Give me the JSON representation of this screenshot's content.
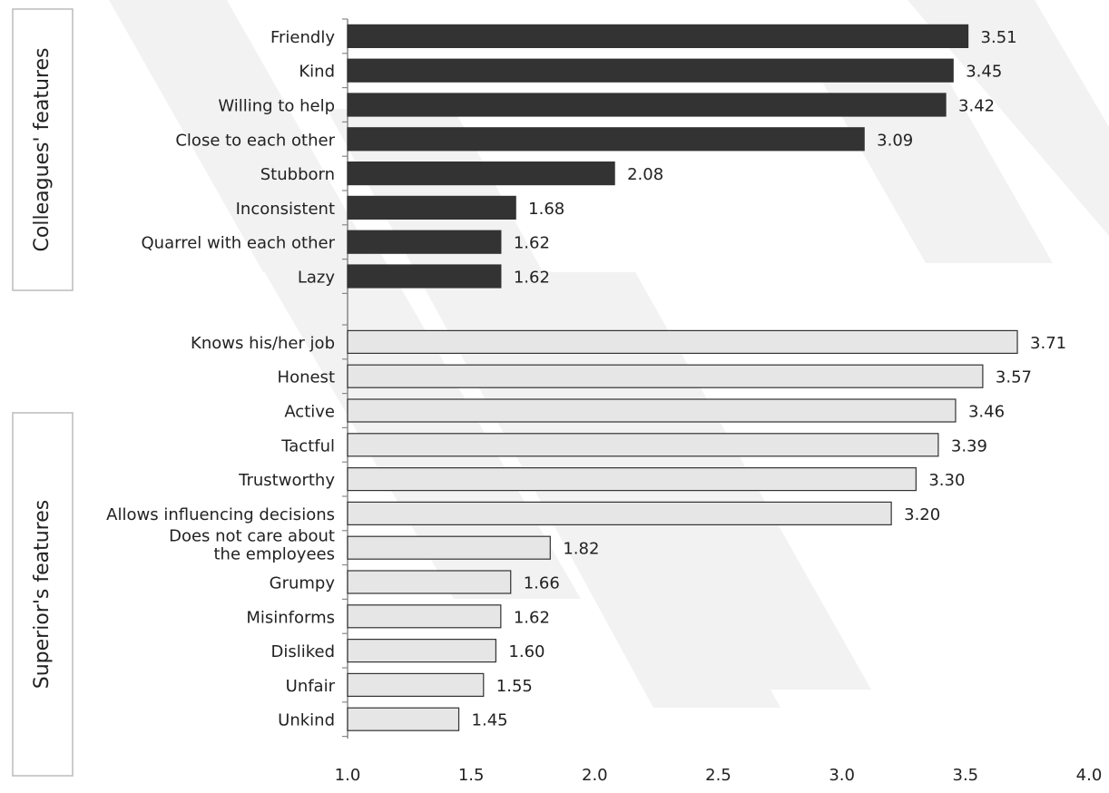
{
  "chart_data": {
    "type": "bar",
    "orientation": "horizontal",
    "title": "",
    "xlabel": "",
    "ylabel": "",
    "xlim": [
      1.0,
      4.0
    ],
    "xticks": [
      "1.0",
      "1.5",
      "2.0",
      "2.5",
      "3.0",
      "3.5",
      "4.0"
    ],
    "grid": false,
    "groups": [
      {
        "name": "Colleagues' features",
        "fill": "#333333",
        "categories": [
          {
            "label": [
              "Friendly"
            ],
            "value": 3.51,
            "value_label": "3.51"
          },
          {
            "label": [
              "Kind"
            ],
            "value": 3.45,
            "value_label": "3.45"
          },
          {
            "label": [
              "Willing to help"
            ],
            "value": 3.42,
            "value_label": "3.42"
          },
          {
            "label": [
              "Close to each other"
            ],
            "value": 3.09,
            "value_label": "3.09"
          },
          {
            "label": [
              "Stubborn"
            ],
            "value": 2.08,
            "value_label": "2.08"
          },
          {
            "label": [
              "Inconsistent"
            ],
            "value": 1.68,
            "value_label": "1.68"
          },
          {
            "label": [
              "Quarrel with each other"
            ],
            "value": 1.62,
            "value_label": "1.62"
          },
          {
            "label": [
              "Lazy"
            ],
            "value": 1.62,
            "value_label": "1.62"
          }
        ]
      },
      {
        "name": "Superior's features",
        "fill": "#e6e6e6",
        "categories": [
          {
            "label": [
              "Knows his/her job"
            ],
            "value": 3.71,
            "value_label": "3.71"
          },
          {
            "label": [
              "Honest"
            ],
            "value": 3.57,
            "value_label": "3.57"
          },
          {
            "label": [
              "Active"
            ],
            "value": 3.46,
            "value_label": "3.46"
          },
          {
            "label": [
              "Tactful"
            ],
            "value": 3.39,
            "value_label": "3.39"
          },
          {
            "label": [
              "Trustworthy"
            ],
            "value": 3.3,
            "value_label": "3.30"
          },
          {
            "label": [
              "Allows influencing decisions"
            ],
            "value": 3.2,
            "value_label": "3.20"
          },
          {
            "label": [
              "Does not care about",
              "the employees"
            ],
            "value": 1.82,
            "value_label": "1.82"
          },
          {
            "label": [
              "Grumpy"
            ],
            "value": 1.66,
            "value_label": "1.66"
          },
          {
            "label": [
              "Misinforms"
            ],
            "value": 1.62,
            "value_label": "1.62"
          },
          {
            "label": [
              "Disliked"
            ],
            "value": 1.6,
            "value_label": "1.60"
          },
          {
            "label": [
              "Unfair"
            ],
            "value": 1.55,
            "value_label": "1.55"
          },
          {
            "label": [
              "Unkind"
            ],
            "value": 1.45,
            "value_label": "1.45"
          }
        ]
      }
    ],
    "colors": {
      "outline": "#333333",
      "axis": "#888888",
      "frame": "#bbbbbb",
      "watermark": "#f2f2f2"
    }
  }
}
